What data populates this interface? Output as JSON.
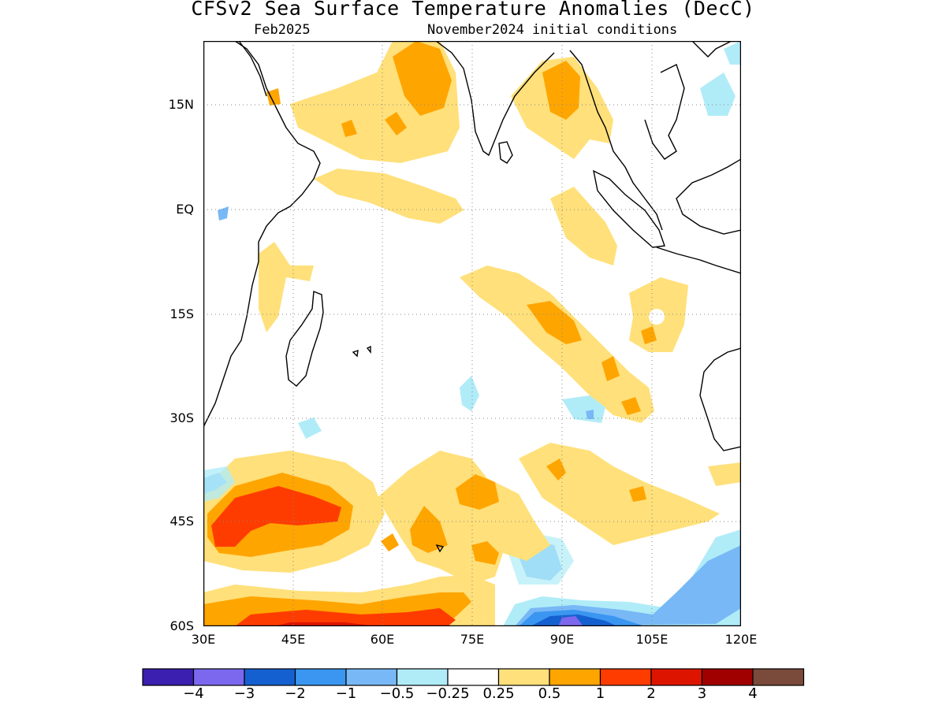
{
  "title": "CFSv2 Sea Surface Temperature Anomalies (DecC)",
  "valid_month": "Feb2025",
  "init_conditions": "November2024 initial conditions",
  "lat_labels": [
    "15N",
    "EQ",
    "15S",
    "30S",
    "45S",
    "60S"
  ],
  "lon_labels": [
    "30E",
    "45E",
    "60E",
    "75E",
    "90E",
    "105E",
    "120E"
  ],
  "colorbar": {
    "colors": [
      "#3a1fb0",
      "#7b68ee",
      "#1560d0",
      "#3a96f0",
      "#78b8f6",
      "#b0ecf8",
      "#ffffff",
      "#ffe07a",
      "#ffa500",
      "#ff3c00",
      "#dd1500",
      "#a00000",
      "#7a4a3a"
    ],
    "labels": [
      "−4",
      "−3",
      "−2",
      "−1",
      "−0.5",
      "−0.25",
      "0.25",
      "0.5",
      "1",
      "2",
      "3",
      "4"
    ]
  },
  "palette": {
    "pos025": "#ffe07a",
    "pos05": "#ffa500",
    "pos1": "#ff3c00",
    "pos2": "#dd1500",
    "neg025": "#b0ecf8",
    "neg05": "#78b8f6",
    "neg1": "#3a96f0",
    "neg2": "#1560d0",
    "neg3": "#7b68ee"
  }
}
